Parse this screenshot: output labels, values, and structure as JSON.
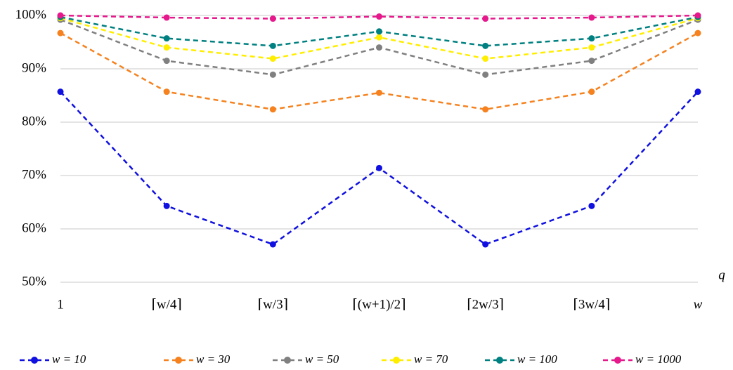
{
  "chart_data": {
    "type": "line",
    "x_label": "q",
    "categories": [
      "1",
      "⌈w/4⌉",
      "⌈w/3⌉",
      "⌈(w+1)/2⌉",
      "⌈2w/3⌉",
      "⌈3w/4⌉",
      "w"
    ],
    "series": [
      {
        "name": "w = 10",
        "color": "#1010e0",
        "values": [
          85.7,
          64.3,
          57.1,
          71.4,
          57.1,
          64.3,
          85.7
        ]
      },
      {
        "name": "w = 30",
        "color": "#f5821f",
        "values": [
          96.7,
          85.7,
          82.4,
          85.5,
          82.4,
          85.7,
          96.7
        ]
      },
      {
        "name": "w = 50",
        "color": "#808080",
        "values": [
          99.2,
          91.5,
          88.9,
          94.0,
          88.9,
          91.5,
          99.2
        ]
      },
      {
        "name": "w = 70",
        "color": "#ffee00",
        "values": [
          99.5,
          94.0,
          91.9,
          95.9,
          91.9,
          94.0,
          99.5
        ]
      },
      {
        "name": "w = 100",
        "color": "#008080",
        "values": [
          99.7,
          95.7,
          94.3,
          97.0,
          94.3,
          95.7,
          99.7
        ]
      },
      {
        "name": "w = 1000",
        "color": "#e6198c",
        "values": [
          100,
          99.6,
          99.4,
          99.8,
          99.4,
          99.6,
          100
        ]
      }
    ],
    "ylim": [
      50,
      100
    ],
    "yticks": [
      {
        "value": 50,
        "label": "50%"
      },
      {
        "value": 60,
        "label": "60%"
      },
      {
        "value": 70,
        "label": "70%"
      },
      {
        "value": 80,
        "label": "80%"
      },
      {
        "value": 90,
        "label": "90%"
      },
      {
        "value": 100,
        "label": "100%"
      }
    ],
    "grid": true,
    "legend": "bottom"
  }
}
